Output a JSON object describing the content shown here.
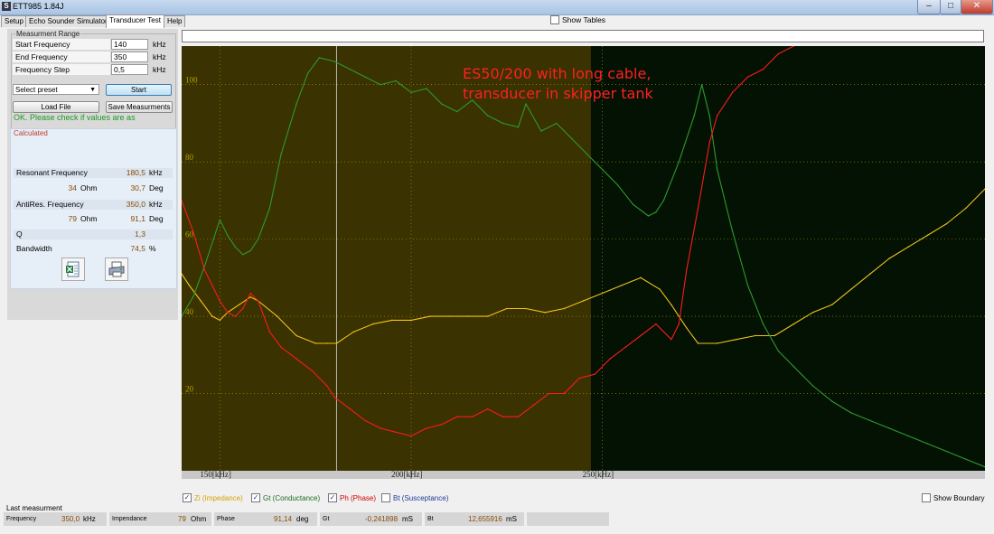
{
  "window": {
    "title": "ETT985 1.84J",
    "app_icon": "S",
    "min_glyph": "–",
    "max_glyph": "□",
    "close_glyph": "✕"
  },
  "tabs": [
    "Setup",
    "Echo Sounder Simulator",
    "Transducer Test",
    "Help"
  ],
  "show_tables": {
    "label": "Show Tables",
    "checked": false
  },
  "measurement_range": {
    "title": "Measurment Range",
    "fields": [
      {
        "label": "Start Frequency",
        "value": "140",
        "unit": "kHz"
      },
      {
        "label": "End Frequency",
        "value": "350",
        "unit": "kHz"
      },
      {
        "label": "Frequency Step",
        "value": "0,5",
        "unit": "kHz"
      }
    ],
    "preset": {
      "value": "Select preset",
      "arrow": "▼"
    },
    "start_label": "Start",
    "load_label": "Load File",
    "save_label": "Save Measurments"
  },
  "ok_message": "OK. Please check if values are as",
  "calculated": {
    "title": "Calculated",
    "resonant_label": "Resonant Frequency",
    "resonant_value": "180,5",
    "resonant_unit": "kHz",
    "res_ohm_value": "34",
    "res_ohm_unit": "Ohm",
    "res_deg_value": "30,7",
    "res_deg_unit": "Deg",
    "antires_label": "AntiRes. Frequency",
    "antires_value": "350,0",
    "antires_unit": "kHz",
    "anti_ohm_value": "79",
    "anti_ohm_unit": "Ohm",
    "anti_deg_value": "91,1",
    "anti_deg_unit": "Deg",
    "q_label": "Q",
    "q_value": "1,3",
    "bw_label": "Bandwidth",
    "bw_value": "74,5",
    "bw_unit": "%"
  },
  "chart_data": {
    "type": "line",
    "annotation": [
      "ES50/200 with long cable,",
      "transducer in skipper tank"
    ],
    "y_ticks": [
      "100",
      "80",
      "60",
      "40",
      "20"
    ],
    "x_ticks": [
      "150[kHz]",
      "200[kHz]",
      "250[kHz]"
    ],
    "xlim": [
      140,
      350
    ],
    "ylim": [
      0,
      110
    ],
    "boundary_khz": 247,
    "cursor_khz": 180.5,
    "colors": {
      "plot_bg": "#000000",
      "band": "#3a3200",
      "impedance": "#f2c21b",
      "conductance": "#2e9a2e",
      "phase": "#ff1a1a",
      "grid": "#b8a000"
    },
    "series": [
      {
        "name": "Zi (Impedance)",
        "color": "#f2c21b",
        "x": [
          140,
          142,
          145,
          148,
          150,
          152,
          155,
          158,
          160,
          165,
          170,
          175,
          178,
          180.5,
          182,
          185,
          190,
          195,
          200,
          205,
          210,
          215,
          220,
          225,
          230,
          235,
          240,
          245,
          250,
          255,
          260,
          265,
          268,
          272,
          275,
          280,
          285,
          290,
          295,
          300,
          305,
          310,
          315,
          320,
          325,
          330,
          335,
          340,
          345,
          350
        ],
        "y": [
          51,
          48,
          44,
          40,
          39,
          41,
          43,
          45,
          44,
          40,
          35,
          33,
          33,
          33,
          34,
          36,
          38,
          39,
          39,
          40,
          40,
          40,
          40,
          42,
          42,
          41,
          42,
          44,
          46,
          48,
          50,
          47,
          43,
          37,
          33,
          33,
          34,
          35,
          35,
          38,
          41,
          43,
          47,
          51,
          55,
          58,
          61,
          64,
          68,
          73
        ]
      },
      {
        "name": "Gt (Conductance)",
        "color": "#2e9a2e",
        "x": [
          140,
          143,
          146,
          150,
          152,
          154,
          156,
          158,
          160,
          163,
          166,
          170,
          173,
          176,
          180,
          184,
          188,
          192,
          196,
          200,
          204,
          208,
          212,
          216,
          220,
          224,
          228,
          230,
          234,
          238,
          242,
          246,
          250,
          254,
          258,
          262,
          264,
          266,
          270,
          274,
          276,
          278,
          280,
          284,
          288,
          292,
          296,
          300,
          305,
          310,
          315,
          320,
          325,
          330,
          335,
          340,
          345,
          350
        ],
        "y": [
          40,
          45,
          53,
          65,
          61,
          58,
          56,
          57,
          60,
          68,
          82,
          95,
          103,
          107,
          106,
          104,
          102,
          100,
          101,
          98,
          99,
          95,
          93,
          96,
          92,
          90,
          89,
          95,
          88,
          90,
          86,
          82,
          78,
          74,
          69,
          66,
          67,
          70,
          80,
          92,
          100,
          92,
          78,
          62,
          48,
          38,
          31,
          27,
          22,
          18,
          15,
          13,
          11,
          9,
          7,
          5,
          3,
          1
        ]
      },
      {
        "name": "Ph (Phase)",
        "color": "#ff1a1a",
        "x": [
          140,
          143,
          146,
          150,
          152,
          154,
          156,
          158,
          160,
          163,
          166,
          170,
          174,
          178,
          180,
          184,
          188,
          192,
          196,
          200,
          204,
          208,
          212,
          216,
          220,
          224,
          228,
          232,
          236,
          240,
          244,
          248,
          252,
          256,
          260,
          264,
          268,
          270,
          272,
          275,
          278,
          280,
          284,
          288,
          292,
          296,
          300,
          304,
          308,
          312,
          316,
          320,
          325,
          330,
          335,
          340,
          345,
          350
        ],
        "y": [
          70,
          62,
          52,
          44,
          41,
          40,
          42,
          46,
          44,
          36,
          32,
          29,
          26,
          22,
          19,
          16,
          13,
          11,
          10,
          9,
          11,
          12,
          14,
          14,
          16,
          14,
          14,
          17,
          20,
          20,
          24,
          25,
          29,
          32,
          35,
          38,
          34,
          38,
          52,
          68,
          85,
          92,
          98,
          102,
          104,
          108,
          110,
          113,
          115,
          116,
          117,
          118,
          118,
          118,
          118,
          118,
          118,
          118
        ]
      }
    ]
  },
  "legend": [
    {
      "label": "Zi (Impedance)",
      "color": "#d6a300",
      "checked": true,
      "check_glyph": "✓"
    },
    {
      "label": "Gt (Conductance)",
      "color": "#1f6b1f",
      "checked": true,
      "check_glyph": "✓"
    },
    {
      "label": "Ph (Phase)",
      "color": "#d40000",
      "checked": true,
      "check_glyph": "✓"
    },
    {
      "label": "Bt (Susceptance)",
      "color": "#1f3a9a",
      "checked": false,
      "check_glyph": ""
    }
  ],
  "show_boundary": {
    "label": "Show Boundary",
    "checked": false
  },
  "last_measurement": {
    "title": "Last measurment",
    "cells": [
      {
        "label": "Frequency",
        "value": "350,0",
        "unit": "kHz"
      },
      {
        "label": "Impendance",
        "value": "79",
        "unit": "Ohm"
      },
      {
        "label": "Phase",
        "value": "91,14",
        "unit": "deg"
      },
      {
        "label": "Gt",
        "value": "-0,241898",
        "unit": "mS"
      },
      {
        "label": "Bt",
        "value": "12,655916",
        "unit": "mS"
      },
      {
        "label": "",
        "value": "",
        "unit": ""
      }
    ]
  }
}
